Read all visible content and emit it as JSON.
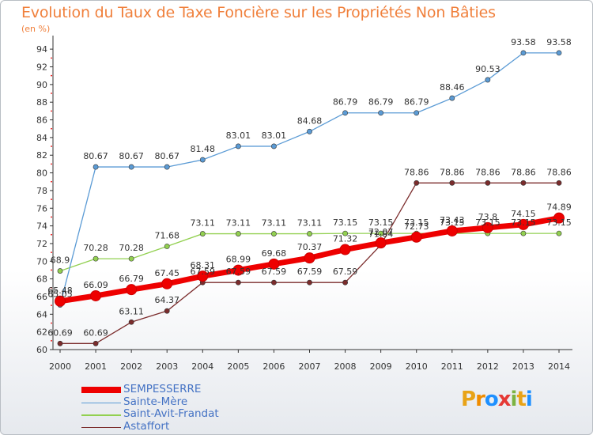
{
  "header": {
    "title": "Evolution du Taux de Taxe Foncière sur les Propriétés Non Bâties",
    "unit": "(en %)"
  },
  "logo": {
    "text": "Proxiti"
  },
  "chart_data": {
    "type": "line",
    "title": "Evolution du Taux de Taxe Foncière sur les Propriétés Non Bâties",
    "ylabel": "(en %)",
    "xlabel": "",
    "x": [
      "2000",
      "2001",
      "2002",
      "2003",
      "2004",
      "2005",
      "2006",
      "2007",
      "2008",
      "2009",
      "2010",
      "2011",
      "2012",
      "2013",
      "2014"
    ],
    "ylim": [
      60,
      95
    ],
    "yticks": [
      60,
      62,
      64,
      66,
      68,
      70,
      72,
      74,
      76,
      78,
      80,
      82,
      84,
      86,
      88,
      90,
      92,
      94
    ],
    "grid": false,
    "legend_position": "bottom-left",
    "series": [
      {
        "name": "SEMPESSERRE",
        "color": "#ee0000",
        "values": [
          65.48,
          66.09,
          66.79,
          67.45,
          68.31,
          68.99,
          69.68,
          70.37,
          71.32,
          72.07,
          72.73,
          73.43,
          73.8,
          74.15,
          74.89
        ],
        "labels": [
          "65.48",
          "66.09",
          "66.79",
          "67.45",
          "68.31",
          "68.99",
          "69.68",
          "70.37",
          "71.32",
          "72.07",
          "72.73",
          "73.43",
          "73.8",
          "74.15",
          "74.89"
        ]
      },
      {
        "name": "Sainte-Mère",
        "color": "#5b9bd5",
        "values": [
          65.05,
          80.67,
          80.67,
          80.67,
          81.48,
          83.01,
          83.01,
          84.68,
          86.79,
          86.79,
          86.79,
          88.46,
          90.53,
          93.58,
          93.58
        ],
        "labels": [
          "65.05",
          "80.67",
          "80.67",
          "80.67",
          "81.48",
          "83.01",
          "83.01",
          "84.68",
          "86.79",
          "86.79",
          "86.79",
          "88.46",
          "90.53",
          "93.58",
          "93.58"
        ]
      },
      {
        "name": "Saint-Avit-Frandat",
        "color": "#92d050",
        "values": [
          68.9,
          70.28,
          70.28,
          71.68,
          73.11,
          73.11,
          73.11,
          73.11,
          73.15,
          73.15,
          73.15,
          73.15,
          73.15,
          73.15,
          73.15
        ],
        "labels": [
          "68.9",
          "70.28",
          "70.28",
          "71.68",
          "73.11",
          "73.11",
          "73.11",
          "73.11",
          "73.15",
          "73.15",
          "73.15",
          "73.15",
          "73.15",
          "73.15",
          "73.15"
        ]
      },
      {
        "name": "Astaffort",
        "color": "#7b2c2c",
        "values": [
          60.69,
          60.69,
          63.11,
          64.37,
          67.59,
          67.59,
          67.59,
          67.59,
          67.59,
          71.84,
          78.86,
          78.86,
          78.86,
          78.86,
          78.86
        ],
        "labels": [
          "60.69",
          "60.69",
          "63.11",
          "64.37",
          "67.59",
          "67.59",
          "67.59",
          "67.59",
          "67.59",
          "71.84",
          "78.86",
          "78.86",
          "78.86",
          "78.86",
          "78.86"
        ]
      }
    ]
  }
}
